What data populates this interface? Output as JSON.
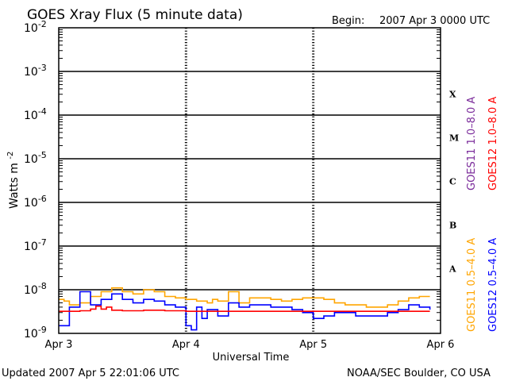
{
  "header": {
    "title": "GOES Xray Flux (5 minute data)",
    "begin_label": "Begin:",
    "begin_value": "2007 Apr 3 0000 UTC"
  },
  "footer": {
    "updated": "Updated 2007 Apr  5 22:01:06 UTC",
    "credit": "NOAA/SEC Boulder, CO USA"
  },
  "chart_data": {
    "type": "line",
    "title": "GOES Xray Flux (5 minute data)",
    "xlabel": "Universal Time",
    "ylabel": "Watts m",
    "ylabel_sup": "-2",
    "yscale": "log",
    "ylim": [
      1e-09,
      0.01
    ],
    "xlim": [
      "2007-04-03T00:00",
      "2007-04-06T00:00"
    ],
    "x_ticks": [
      "Apr 3",
      "Apr 4",
      "Apr 5",
      "Apr 6"
    ],
    "y_ticks": [
      {
        "base": "10",
        "exp": "-9"
      },
      {
        "base": "10",
        "exp": "-8"
      },
      {
        "base": "10",
        "exp": "-7"
      },
      {
        "base": "10",
        "exp": "-6"
      },
      {
        "base": "10",
        "exp": "-5"
      },
      {
        "base": "10",
        "exp": "-4"
      },
      {
        "base": "10",
        "exp": "-3"
      },
      {
        "base": "10",
        "exp": "-2"
      }
    ],
    "flare_classes": [
      "A",
      "B",
      "C",
      "M",
      "X"
    ],
    "grid": true,
    "colors": {
      "goes11_long": "#ffa500",
      "goes12_long": "#0000ff",
      "goes11_short": "#7a2a9a",
      "goes12_short": "#ff0000"
    },
    "legend_right": [
      {
        "label": "GOES11 1.0–8.0 A",
        "color": "#7a2a9a"
      },
      {
        "label": "GOES12 1.0–8.0 A",
        "color": "#ff0000"
      }
    ],
    "legend_left": [
      {
        "label": "GOES11 0.5–4.0 A",
        "color": "#ffa500"
      },
      {
        "label": "GOES12 0.5–4.0 A",
        "color": "#0000ff"
      }
    ],
    "series": [
      {
        "name": "GOES11 0.5–4.0 A",
        "x": [
          "2007-04-03T00:00",
          "2007-04-03T01:00",
          "2007-04-03T02:00",
          "2007-04-03T04:00",
          "2007-04-03T06:00",
          "2007-04-03T08:00",
          "2007-04-03T10:00",
          "2007-04-03T12:00",
          "2007-04-03T14:00",
          "2007-04-03T16:00",
          "2007-04-03T18:00",
          "2007-04-03T20:00",
          "2007-04-03T22:00",
          "2007-04-04T00:00",
          "2007-04-04T02:00",
          "2007-04-04T04:00",
          "2007-04-04T05:00",
          "2007-04-04T06:00",
          "2007-04-04T08:00",
          "2007-04-04T10:00",
          "2007-04-04T12:00",
          "2007-04-04T14:00",
          "2007-04-04T16:00",
          "2007-04-04T18:00",
          "2007-04-04T20:00",
          "2007-04-04T22:00",
          "2007-04-05T00:00",
          "2007-04-05T02:00",
          "2007-04-05T04:00",
          "2007-04-05T06:00",
          "2007-04-05T08:00",
          "2007-04-05T10:00",
          "2007-04-05T12:00",
          "2007-04-05T14:00",
          "2007-04-05T16:00",
          "2007-04-05T18:00",
          "2007-04-05T20:00",
          "2007-04-05T22:00"
        ],
        "values": [
          6e-09,
          5.5e-09,
          4.5e-09,
          5e-09,
          7e-09,
          9e-09,
          1.1e-08,
          9e-09,
          8e-09,
          1e-08,
          9e-09,
          7e-09,
          6.5e-09,
          6e-09,
          5.5e-09,
          5e-09,
          6e-09,
          5.5e-09,
          9e-09,
          5e-09,
          6.5e-09,
          6.5e-09,
          6e-09,
          5.5e-09,
          6e-09,
          6.5e-09,
          6.5e-09,
          6e-09,
          5e-09,
          4.5e-09,
          4.5e-09,
          4e-09,
          4e-09,
          4.5e-09,
          5.5e-09,
          6.5e-09,
          7e-09,
          7e-09
        ]
      },
      {
        "name": "GOES12 0.5–4.0 A",
        "x": [
          "2007-04-03T00:00",
          "2007-04-03T01:00",
          "2007-04-03T02:00",
          "2007-04-03T04:00",
          "2007-04-03T06:00",
          "2007-04-03T08:00",
          "2007-04-03T10:00",
          "2007-04-03T12:00",
          "2007-04-03T14:00",
          "2007-04-03T16:00",
          "2007-04-03T18:00",
          "2007-04-03T20:00",
          "2007-04-03T22:00",
          "2007-04-04T00:00",
          "2007-04-04T01:00",
          "2007-04-04T02:00",
          "2007-04-04T03:00",
          "2007-04-04T04:00",
          "2007-04-04T06:00",
          "2007-04-04T08:00",
          "2007-04-04T10:00",
          "2007-04-04T12:00",
          "2007-04-04T14:00",
          "2007-04-04T16:00",
          "2007-04-04T18:00",
          "2007-04-04T20:00",
          "2007-04-04T22:00",
          "2007-04-05T00:00",
          "2007-04-05T02:00",
          "2007-04-05T04:00",
          "2007-04-05T06:00",
          "2007-04-05T08:00",
          "2007-04-05T10:00",
          "2007-04-05T12:00",
          "2007-04-05T14:00",
          "2007-04-05T16:00",
          "2007-04-05T18:00",
          "2007-04-05T20:00",
          "2007-04-05T22:00"
        ],
        "values": [
          1.5e-09,
          1.5e-09,
          4e-09,
          9e-09,
          4.5e-09,
          6e-09,
          8e-09,
          6e-09,
          5e-09,
          6e-09,
          5.5e-09,
          4.5e-09,
          4e-09,
          1.5e-09,
          1.2e-09,
          4e-09,
          2.2e-09,
          3.5e-09,
          2.5e-09,
          5e-09,
          4e-09,
          4.5e-09,
          4.5e-09,
          4e-09,
          4e-09,
          3.5e-09,
          3e-09,
          2.2e-09,
          2.5e-09,
          3e-09,
          3e-09,
          2.5e-09,
          2.5e-09,
          2.5e-09,
          3e-09,
          3.5e-09,
          4.5e-09,
          4e-09,
          3.5e-09
        ]
      },
      {
        "name": "GOES12 1.0–8.0 A",
        "x": [
          "2007-04-03T00:00",
          "2007-04-03T04:00",
          "2007-04-03T06:00",
          "2007-04-03T07:00",
          "2007-04-03T08:00",
          "2007-04-03T09:00",
          "2007-04-03T10:00",
          "2007-04-03T12:00",
          "2007-04-03T16:00",
          "2007-04-03T20:00",
          "2007-04-04T00:00",
          "2007-04-05T00:00",
          "2007-04-05T12:00",
          "2007-04-05T22:00"
        ],
        "values": [
          3.2e-09,
          3.3e-09,
          3.6e-09,
          4.2e-09,
          3.6e-09,
          4e-09,
          3.4e-09,
          3.3e-09,
          3.4e-09,
          3.3e-09,
          3.2e-09,
          3.2e-09,
          3.2e-09,
          3.2e-09
        ]
      }
    ]
  }
}
